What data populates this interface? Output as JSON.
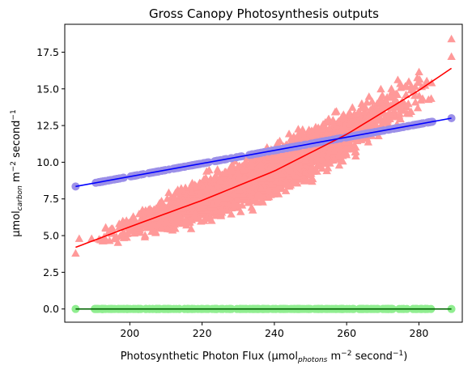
{
  "chart_data": {
    "type": "scatter",
    "title": "Gross Canopy Photosynthesis outputs",
    "xlabel": {
      "prefix": "Photosynthetic Photon Flux (μmol",
      "sub": "photons",
      "mid": " m",
      "sup1": "−2",
      "mid2": " second",
      "sup2": "−1",
      "suffix": ")"
    },
    "ylabel": {
      "prefix": "μmol",
      "sub": "carbon",
      "mid": " m",
      "sup1": "−2",
      "mid2": " second",
      "sup2": "−1"
    },
    "xlim": [
      182,
      292
    ],
    "ylim": [
      -0.9,
      19.4
    ],
    "xticks": [
      200,
      220,
      240,
      260,
      280
    ],
    "xtick_labels": [
      "200",
      "220",
      "240",
      "260",
      "280"
    ],
    "yticks": [
      0.0,
      2.5,
      5.0,
      7.5,
      10.0,
      12.5,
      15.0,
      17.5
    ],
    "ytick_labels": [
      "0.0",
      "2.5",
      "5.0",
      "7.5",
      "10.0",
      "12.5",
      "15.0",
      "17.5"
    ],
    "grid": false,
    "series": [
      {
        "marker": "triangle",
        "color": "#ff9999",
        "spread": "band",
        "x_range": [
          185,
          289
        ],
        "band_center": [
          [
            185,
            4.2
          ],
          [
            200,
            5.6
          ],
          [
            220,
            7.4
          ],
          [
            240,
            9.4
          ],
          [
            260,
            11.9
          ],
          [
            280,
            14.9
          ],
          [
            289,
            16.4
          ]
        ],
        "band_halfwidth": [
          [
            185,
            0.6
          ],
          [
            200,
            1.2
          ],
          [
            220,
            1.9
          ],
          [
            240,
            2.3
          ],
          [
            260,
            2.2
          ],
          [
            280,
            1.9
          ],
          [
            289,
            1.6
          ]
        ],
        "extremes": [
          [
            289,
            18.4
          ],
          [
            289,
            17.2
          ],
          [
            185,
            3.8
          ],
          [
            186,
            4.8
          ]
        ]
      },
      {
        "marker": "circle",
        "color": "#9b8fe8",
        "spread": "line",
        "x_range": [
          185,
          289
        ],
        "y_at_range": [
          8.35,
          13.0
        ]
      },
      {
        "marker": "circle",
        "color": "#90ee90",
        "spread": "line",
        "x_range": [
          185,
          289
        ],
        "y_at_range": [
          0.0,
          0.0
        ]
      }
    ],
    "fit_lines": [
      {
        "color": "#ff0000",
        "kind": "quadratic",
        "points": [
          [
            185,
            4.2
          ],
          [
            200,
            5.6
          ],
          [
            220,
            7.4
          ],
          [
            240,
            9.4
          ],
          [
            260,
            11.9
          ],
          [
            280,
            14.9
          ],
          [
            289,
            16.4
          ]
        ]
      },
      {
        "color": "#0000ff",
        "kind": "linear",
        "points": [
          [
            185,
            8.35
          ],
          [
            289,
            13.0
          ]
        ]
      },
      {
        "color": "#006400",
        "kind": "linear",
        "points": [
          [
            185,
            0.0
          ],
          [
            289,
            0.0
          ]
        ]
      }
    ]
  }
}
